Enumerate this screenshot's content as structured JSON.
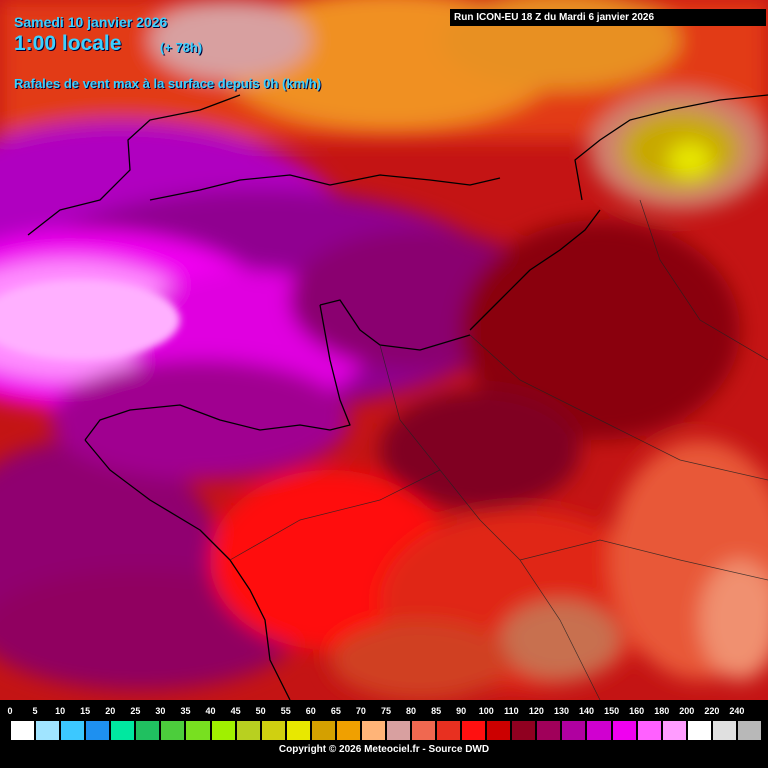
{
  "header": {
    "date": "Samedi 10 janvier 2026",
    "time": "1:00 locale",
    "lead": "(+ 78h)",
    "parameter": "Rafales de vent max à la surface depuis 0h (km/h)",
    "run": "Run ICON-EU 18 Z du Mardi 6 janvier 2026"
  },
  "legend": {
    "labels": [
      "0",
      "5",
      "10",
      "15",
      "20",
      "25",
      "30",
      "35",
      "40",
      "45",
      "50",
      "55",
      "60",
      "65",
      "70",
      "75",
      "80",
      "85",
      "90",
      "100",
      "110",
      "120",
      "130",
      "140",
      "150",
      "160",
      "180",
      "200",
      "220",
      "240"
    ],
    "colors": [
      "#ffffff",
      "#a0e4ff",
      "#3cc8ff",
      "#1e90f0",
      "#00e8a0",
      "#20c060",
      "#4ccd3c",
      "#78e020",
      "#a0f000",
      "#b8d020",
      "#d0d010",
      "#e8e800",
      "#d4a000",
      "#f0a000",
      "#ffb478",
      "#d8a0a0",
      "#f06850",
      "#e83020",
      "#ff1010",
      "#cc0000",
      "#900020",
      "#a0005a",
      "#b000a0",
      "#d000d0",
      "#f000f0",
      "#ff60ff",
      "#ff9cff",
      "#ffffff",
      "#e0e0e0",
      "#b8b8b8"
    ]
  },
  "copyright": "Copyright © 2026 Meteociel.fr - Source DWD"
}
